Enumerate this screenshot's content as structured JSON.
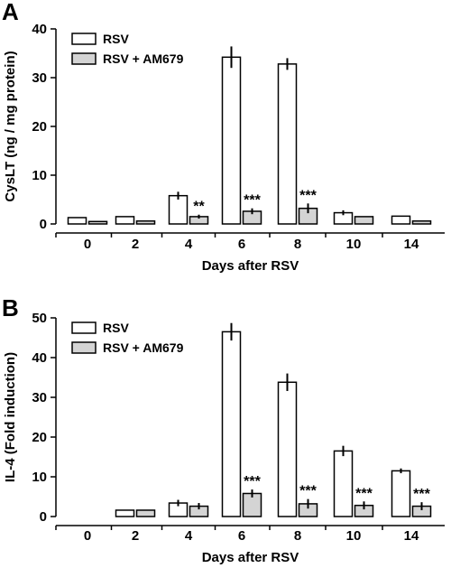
{
  "colors": {
    "rsv_fill": "#ffffff",
    "am679_fill": "#d4d4d4",
    "stroke": "#000000"
  },
  "chart_data": [
    {
      "type": "bar",
      "panel_label": "A",
      "categories": [
        "0",
        "2",
        "4",
        "6",
        "8",
        "10",
        "14"
      ],
      "xlabel": "Days after RSV",
      "ylabel": "CysLT  (ng / mg protein)",
      "ylim": [
        0,
        40
      ],
      "yticks": [
        "0",
        "10",
        "20",
        "30",
        "40"
      ],
      "legend_position": "top-left",
      "series": [
        {
          "name": "RSV",
          "values": [
            1.3,
            1.5,
            5.8,
            34.2,
            32.8,
            2.3,
            1.6
          ],
          "errors": [
            0,
            0,
            0.8,
            2.2,
            1.2,
            0.5,
            0
          ]
        },
        {
          "name": "RSV + AM679",
          "values": [
            0.5,
            0.6,
            1.5,
            2.6,
            3.2,
            1.5,
            0.6
          ],
          "errors": [
            0,
            0,
            0.4,
            0.6,
            1.0,
            0,
            0
          ]
        }
      ],
      "significance": [
        "",
        "",
        "**",
        "***",
        "***",
        "",
        ""
      ]
    },
    {
      "type": "bar",
      "panel_label": "B",
      "categories": [
        "0",
        "2",
        "4",
        "6",
        "8",
        "10",
        "14"
      ],
      "xlabel": "Days after RSV",
      "ylabel": "IL-4 (Fold induction)",
      "ylim": [
        0,
        50
      ],
      "yticks": [
        "0",
        "10",
        "20",
        "30",
        "40",
        "50"
      ],
      "legend_position": "top-left",
      "series": [
        {
          "name": "RSV",
          "values": [
            0,
            1.6,
            3.4,
            46.5,
            33.8,
            16.5,
            11.5
          ],
          "errors": [
            0,
            0,
            0.8,
            2.2,
            2.2,
            1.3,
            0.6
          ]
        },
        {
          "name": "RSV + AM679",
          "values": [
            0,
            1.6,
            2.6,
            5.8,
            3.2,
            2.8,
            2.6
          ],
          "errors": [
            0,
            0,
            0.8,
            1.0,
            1.2,
            1.0,
            1.0
          ]
        }
      ],
      "significance": [
        "",
        "",
        "",
        "***",
        "***",
        "***",
        "***"
      ]
    }
  ]
}
